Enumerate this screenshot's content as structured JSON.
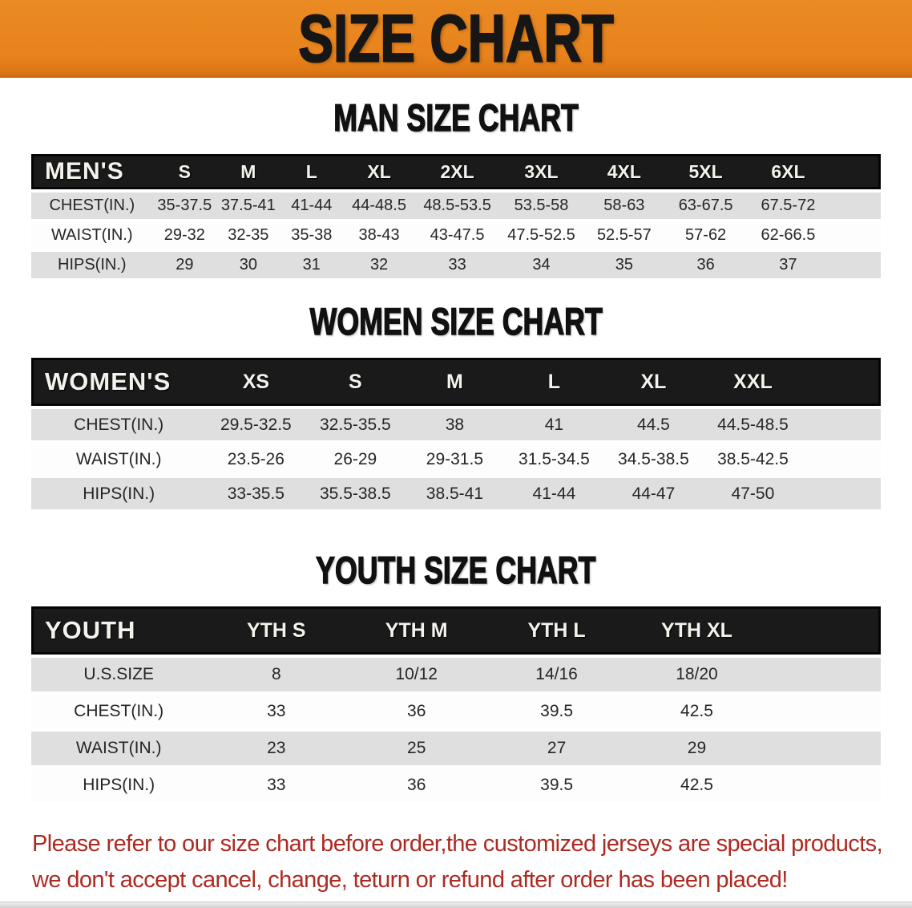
{
  "banner": {
    "title": "SIZE CHART",
    "bg_color": "#e8831d",
    "text_color": "#161616"
  },
  "chart_data": [
    {
      "type": "table",
      "title": "MAN SIZE CHART",
      "header": [
        "MEN'S",
        "S",
        "M",
        "L",
        "XL",
        "2XL",
        "3XL",
        "4XL",
        "5XL",
        "6XL"
      ],
      "rows": [
        [
          "CHEST(IN.)",
          "35-37.5",
          "37.5-41",
          "41-44",
          "44-48.5",
          "48.5-53.5",
          "53.5-58",
          "58-63",
          "63-67.5",
          "67.5-72"
        ],
        [
          "WAIST(IN.)",
          "29-32",
          "32-35",
          "35-38",
          "38-43",
          "43-47.5",
          "47.5-52.5",
          "52.5-57",
          "57-62",
          "62-66.5"
        ],
        [
          "HIPS(IN.)",
          "29",
          "30",
          "31",
          "32",
          "33",
          "34",
          "35",
          "36",
          "37"
        ]
      ]
    },
    {
      "type": "table",
      "title": "WOMEN SIZE CHART",
      "header": [
        "WOMEN'S",
        "XS",
        "S",
        "M",
        "L",
        "XL",
        "XXL"
      ],
      "rows": [
        [
          "CHEST(IN.)",
          "29.5-32.5",
          "32.5-35.5",
          "38",
          "41",
          "44.5",
          "44.5-48.5"
        ],
        [
          "WAIST(IN.)",
          "23.5-26",
          "26-29",
          "29-31.5",
          "31.5-34.5",
          "34.5-38.5",
          "38.5-42.5"
        ],
        [
          "HIPS(IN.)",
          "33-35.5",
          "35.5-38.5",
          "38.5-41",
          "41-44",
          "44-47",
          "47-50"
        ]
      ]
    },
    {
      "type": "table",
      "title": "YOUTH SIZE CHART",
      "header": [
        "YOUTH",
        "YTH S",
        "YTH M",
        "YTH L",
        "YTH XL"
      ],
      "rows": [
        [
          "U.S.SIZE",
          "8",
          "10/12",
          "14/16",
          "18/20"
        ],
        [
          "CHEST(IN.)",
          "33",
          "36",
          "39.5",
          "42.5"
        ],
        [
          "WAIST(IN.)",
          "23",
          "25",
          "27",
          "29"
        ],
        [
          "HIPS(IN.)",
          "33",
          "36",
          "39.5",
          "42.5"
        ]
      ]
    }
  ],
  "footer": {
    "line1": "Please refer to our size chart before order,the customized jerseys are special products,",
    "line2": "we don't accept cancel, change, teturn or refund after order has been placed!",
    "text_color": "#ad2a22"
  },
  "colors": {
    "table_header_bar": "#1a1a1a",
    "row_stripe_gray": "#dfdfdf",
    "row_stripe_white": "#fdfdfd"
  }
}
